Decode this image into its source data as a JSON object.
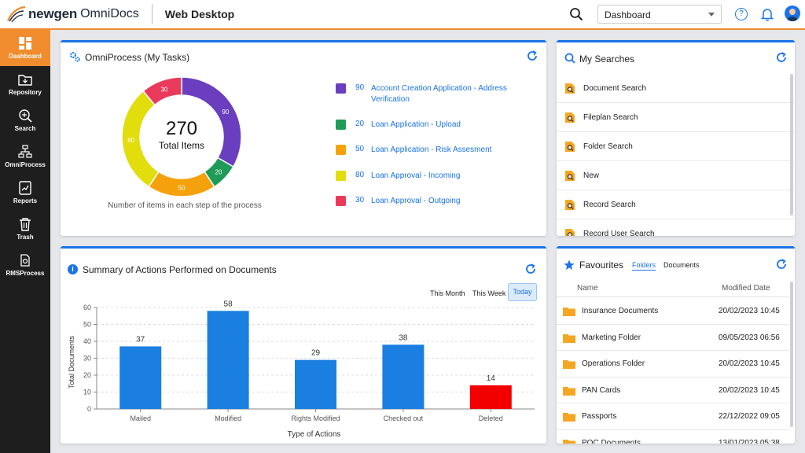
{
  "header": {
    "brand": "newgen",
    "product": "OmniDocs",
    "app_title": "Web Desktop",
    "view_select": "Dashboard",
    "help": "?"
  },
  "sidebar": {
    "items": [
      {
        "label": "Dashboard",
        "icon": "dashboard-icon",
        "active": true
      },
      {
        "label": "Repository",
        "icon": "repository-icon"
      },
      {
        "label": "Search",
        "icon": "search-icon"
      },
      {
        "label": "OmniProcess",
        "icon": "process-icon"
      },
      {
        "label": "Reports",
        "icon": "reports-icon"
      },
      {
        "label": "Trash",
        "icon": "trash-icon"
      },
      {
        "label": "RMSProcess",
        "icon": "rms-icon"
      }
    ]
  },
  "omniprocess": {
    "title": "OmniProcess (My Tasks)",
    "total": "270",
    "total_label": "Total Items",
    "caption": "Number of items in each step of the process",
    "items": [
      {
        "count": 90,
        "label": "Account Creation Application - Address Verification",
        "color": "#6a3ebf"
      },
      {
        "count": 20,
        "label": "Loan Application - Upload",
        "color": "#1f9a57"
      },
      {
        "count": 50,
        "label": "Loan Application - Risk Assesment",
        "color": "#f5a10c"
      },
      {
        "count": 80,
        "label": "Loan Approval - Incoming",
        "color": "#e2dd0c"
      },
      {
        "count": 30,
        "label": "Loan Approval - Outgoing",
        "color": "#ea3a5b"
      }
    ]
  },
  "searches": {
    "title": "My Searches",
    "items": [
      "Document Search",
      "Fileplan Search",
      "Folder Search",
      "New",
      "Record Search",
      "Record User Search"
    ]
  },
  "summary": {
    "title": "Summary of Actions Performed on Documents",
    "ranges": [
      "This Month",
      "This Week",
      "Today"
    ],
    "active_range": "Today"
  },
  "chart_data": {
    "type": "bar",
    "categories": [
      "Mailed",
      "Modified",
      "Rights Modified",
      "Checked out",
      "Deleted"
    ],
    "values": [
      37,
      58,
      29,
      38,
      14
    ],
    "colors": [
      "#1a7fe0",
      "#1a7fe0",
      "#1a7fe0",
      "#1a7fe0",
      "#f20000"
    ],
    "xlabel": "Type of Actions",
    "ylabel": "Total Documents",
    "ylim": [
      0,
      60
    ],
    "yticks": [
      0,
      10,
      20,
      30,
      40,
      50,
      60
    ],
    "grid": true
  },
  "favourites": {
    "title": "Favourites",
    "tabs": [
      "Folders",
      "Documents"
    ],
    "col_name": "Name",
    "col_date": "Modified Date",
    "rows": [
      {
        "name": "Insurance Documents",
        "date": "20/02/2023 10:45"
      },
      {
        "name": "Marketing Folder",
        "date": "09/05/2023 06:56"
      },
      {
        "name": "Operations Folder",
        "date": "20/02/2023 10:45"
      },
      {
        "name": "PAN Cards",
        "date": "20/02/2023 10:45"
      },
      {
        "name": "Passports",
        "date": "22/12/2022 09:05"
      },
      {
        "name": "POC Documents",
        "date": "13/01/2023 05:38"
      }
    ]
  }
}
